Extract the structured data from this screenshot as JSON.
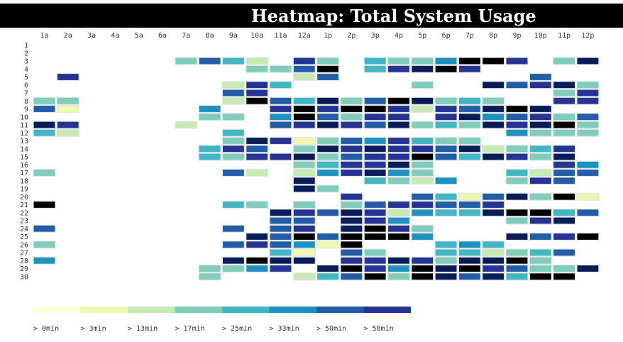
{
  "title": "Heatmap: Total System Usage",
  "chart_data": {
    "type": "heatmap",
    "title": "Heatmap: Total System Usage",
    "x_labels": [
      "1a",
      "2a",
      "3a",
      "4a",
      "5a",
      "6a",
      "7a",
      "8a",
      "9a",
      "10a",
      "11a",
      "12a",
      "1p",
      "2p",
      "3p",
      "4p",
      "5p",
      "6p",
      "7p",
      "8p",
      "9p",
      "10p",
      "11p",
      "12p"
    ],
    "y_labels": [
      "1",
      "2",
      "3",
      "4",
      "5",
      "6",
      "7",
      "8",
      "9",
      "10",
      "11",
      "12",
      "13",
      "14",
      "15",
      "16",
      "17",
      "18",
      "19",
      "20",
      "21",
      "22",
      "23",
      "24",
      "25",
      "26",
      "27",
      "28",
      "29",
      "30"
    ],
    "color_scale": [
      "#ffffd9",
      "#edf8b1",
      "#c7e9b4",
      "#7fcdbb",
      "#41b6c4",
      "#1d91c0",
      "#225ea8",
      "#253494",
      "#081d58"
    ],
    "legend": {
      "thresholds": [
        0,
        3,
        13,
        17,
        25,
        33,
        50,
        58
      ],
      "labels": [
        "> 0min",
        "> 3min",
        "> 13min",
        "> 17min",
        "> 25min",
        "> 33min",
        "> 50min",
        "> 58min"
      ],
      "colors": [
        "#ffffd9",
        "#edf8b1",
        "#c7e9b4",
        "#7fcdbb",
        "#41b6c4",
        "#1d91c0",
        "#225ea8",
        "#253494"
      ]
    },
    "value_note": "bucket index 0-8 into color_scale, 0 = no usage shown",
    "matrix": [
      [
        0,
        0,
        0,
        0,
        0,
        0,
        0,
        0,
        0,
        0,
        0,
        0,
        0,
        0,
        0,
        0,
        0,
        0,
        0,
        0,
        0,
        0,
        0,
        0
      ],
      [
        0,
        0,
        0,
        0,
        0,
        0,
        0,
        0,
        0,
        0,
        0,
        0,
        0,
        0,
        0,
        0,
        0,
        0,
        0,
        0,
        0,
        0,
        0,
        0
      ],
      [
        0,
        0,
        0,
        0,
        0,
        0,
        3,
        6,
        4,
        2,
        0,
        7,
        3,
        0,
        4,
        3,
        3,
        5,
        9,
        9,
        7,
        0,
        3,
        8
      ],
      [
        0,
        0,
        0,
        0,
        0,
        0,
        0,
        0,
        0,
        3,
        3,
        6,
        9,
        0,
        4,
        7,
        8,
        9,
        7,
        0,
        0,
        0,
        0,
        0
      ],
      [
        0,
        7,
        0,
        0,
        0,
        0,
        0,
        0,
        0,
        0,
        0,
        2,
        6,
        0,
        0,
        0,
        0,
        0,
        0,
        0,
        0,
        6,
        0,
        0
      ],
      [
        0,
        0,
        0,
        0,
        0,
        0,
        0,
        0,
        2,
        7,
        4,
        0,
        0,
        0,
        0,
        0,
        3,
        0,
        0,
        8,
        6,
        7,
        8,
        3
      ],
      [
        0,
        0,
        0,
        0,
        0,
        0,
        0,
        0,
        6,
        7,
        0,
        0,
        0,
        0,
        0,
        0,
        0,
        0,
        0,
        0,
        0,
        0,
        3,
        7
      ],
      [
        3,
        3,
        0,
        0,
        0,
        0,
        0,
        0,
        2,
        9,
        6,
        4,
        8,
        3,
        6,
        9,
        8,
        3,
        4,
        3,
        0,
        0,
        7,
        7
      ],
      [
        6,
        1,
        0,
        0,
        0,
        0,
        0,
        5,
        0,
        0,
        7,
        9,
        7,
        9,
        9,
        7,
        2,
        7,
        6,
        8,
        9,
        8,
        0,
        0
      ],
      [
        0,
        0,
        0,
        0,
        0,
        0,
        0,
        3,
        3,
        0,
        5,
        9,
        6,
        3,
        7,
        7,
        0,
        7,
        8,
        5,
        6,
        7,
        3,
        6
      ],
      [
        8,
        7,
        0,
        0,
        0,
        0,
        2,
        0,
        0,
        0,
        6,
        7,
        8,
        7,
        6,
        8,
        3,
        4,
        3,
        8,
        7,
        8,
        9,
        3
      ],
      [
        4,
        2,
        0,
        0,
        0,
        0,
        0,
        0,
        4,
        0,
        0,
        0,
        0,
        0,
        0,
        0,
        0,
        0,
        0,
        0,
        5,
        3,
        3,
        3
      ],
      [
        0,
        0,
        0,
        0,
        0,
        0,
        0,
        0,
        3,
        8,
        7,
        1,
        3,
        6,
        5,
        7,
        4,
        3,
        3,
        0,
        0,
        0,
        0,
        0
      ],
      [
        0,
        0,
        0,
        0,
        0,
        0,
        0,
        4,
        7,
        6,
        0,
        3,
        8,
        7,
        8,
        7,
        7,
        6,
        8,
        2,
        3,
        4,
        7,
        0
      ],
      [
        0,
        0,
        0,
        0,
        0,
        0,
        0,
        4,
        3,
        7,
        7,
        8,
        3,
        6,
        7,
        7,
        9,
        6,
        4,
        8,
        7,
        3,
        8,
        0
      ],
      [
        0,
        0,
        0,
        0,
        0,
        0,
        0,
        0,
        0,
        0,
        0,
        3,
        4,
        7,
        7,
        8,
        3,
        0,
        0,
        0,
        0,
        0,
        7,
        5
      ],
      [
        3,
        0,
        0,
        0,
        0,
        0,
        0,
        0,
        6,
        2,
        0,
        2,
        5,
        7,
        8,
        5,
        3,
        0,
        0,
        0,
        4,
        2,
        6,
        6
      ],
      [
        0,
        0,
        0,
        0,
        0,
        0,
        0,
        0,
        0,
        0,
        0,
        8,
        0,
        0,
        4,
        3,
        2,
        5,
        0,
        0,
        3,
        7,
        6,
        0
      ],
      [
        0,
        0,
        0,
        0,
        0,
        0,
        0,
        0,
        0,
        0,
        0,
        8,
        3,
        0,
        0,
        0,
        0,
        0,
        0,
        0,
        0,
        0,
        0,
        0
      ],
      [
        0,
        0,
        0,
        0,
        0,
        0,
        0,
        0,
        0,
        0,
        0,
        0,
        0,
        7,
        0,
        0,
        6,
        4,
        1,
        6,
        8,
        3,
        9,
        1
      ],
      [
        9,
        0,
        0,
        0,
        0,
        0,
        0,
        0,
        4,
        3,
        0,
        3,
        0,
        3,
        6,
        7,
        7,
        6,
        6,
        7,
        0,
        0,
        0,
        0
      ],
      [
        0,
        0,
        0,
        0,
        0,
        0,
        0,
        0,
        0,
        0,
        8,
        7,
        6,
        8,
        7,
        2,
        5,
        4,
        4,
        8,
        9,
        9,
        4,
        6
      ],
      [
        0,
        0,
        0,
        0,
        0,
        0,
        0,
        0,
        0,
        0,
        6,
        6,
        0,
        8,
        7,
        5,
        0,
        0,
        0,
        0,
        3,
        7,
        8,
        0
      ],
      [
        6,
        0,
        0,
        0,
        0,
        0,
        0,
        0,
        6,
        0,
        6,
        7,
        0,
        8,
        9,
        7,
        3,
        0,
        0,
        0,
        0,
        0,
        0,
        0
      ],
      [
        0,
        0,
        0,
        0,
        0,
        0,
        0,
        0,
        0,
        8,
        6,
        9,
        6,
        9,
        9,
        9,
        5,
        0,
        0,
        0,
        8,
        6,
        7,
        9
      ],
      [
        3,
        0,
        0,
        0,
        0,
        0,
        0,
        0,
        6,
        7,
        6,
        5,
        1,
        9,
        0,
        0,
        0,
        4,
        5,
        4,
        0,
        0,
        0,
        0
      ],
      [
        0,
        0,
        0,
        0,
        0,
        0,
        0,
        0,
        0,
        0,
        4,
        1,
        0,
        6,
        3,
        0,
        0,
        4,
        4,
        2,
        3,
        4,
        6,
        0
      ],
      [
        5,
        0,
        0,
        0,
        0,
        0,
        0,
        0,
        8,
        9,
        8,
        8,
        0,
        7,
        7,
        8,
        7,
        3,
        8,
        8,
        9,
        3,
        0,
        0
      ],
      [
        0,
        0,
        0,
        0,
        0,
        0,
        0,
        3,
        3,
        5,
        7,
        0,
        8,
        9,
        7,
        5,
        9,
        8,
        9,
        7,
        6,
        3,
        3,
        8
      ],
      [
        0,
        0,
        0,
        0,
        0,
        0,
        0,
        3,
        0,
        0,
        0,
        2,
        4,
        6,
        9,
        3,
        9,
        8,
        6,
        8,
        4,
        9,
        9,
        0
      ]
    ]
  }
}
